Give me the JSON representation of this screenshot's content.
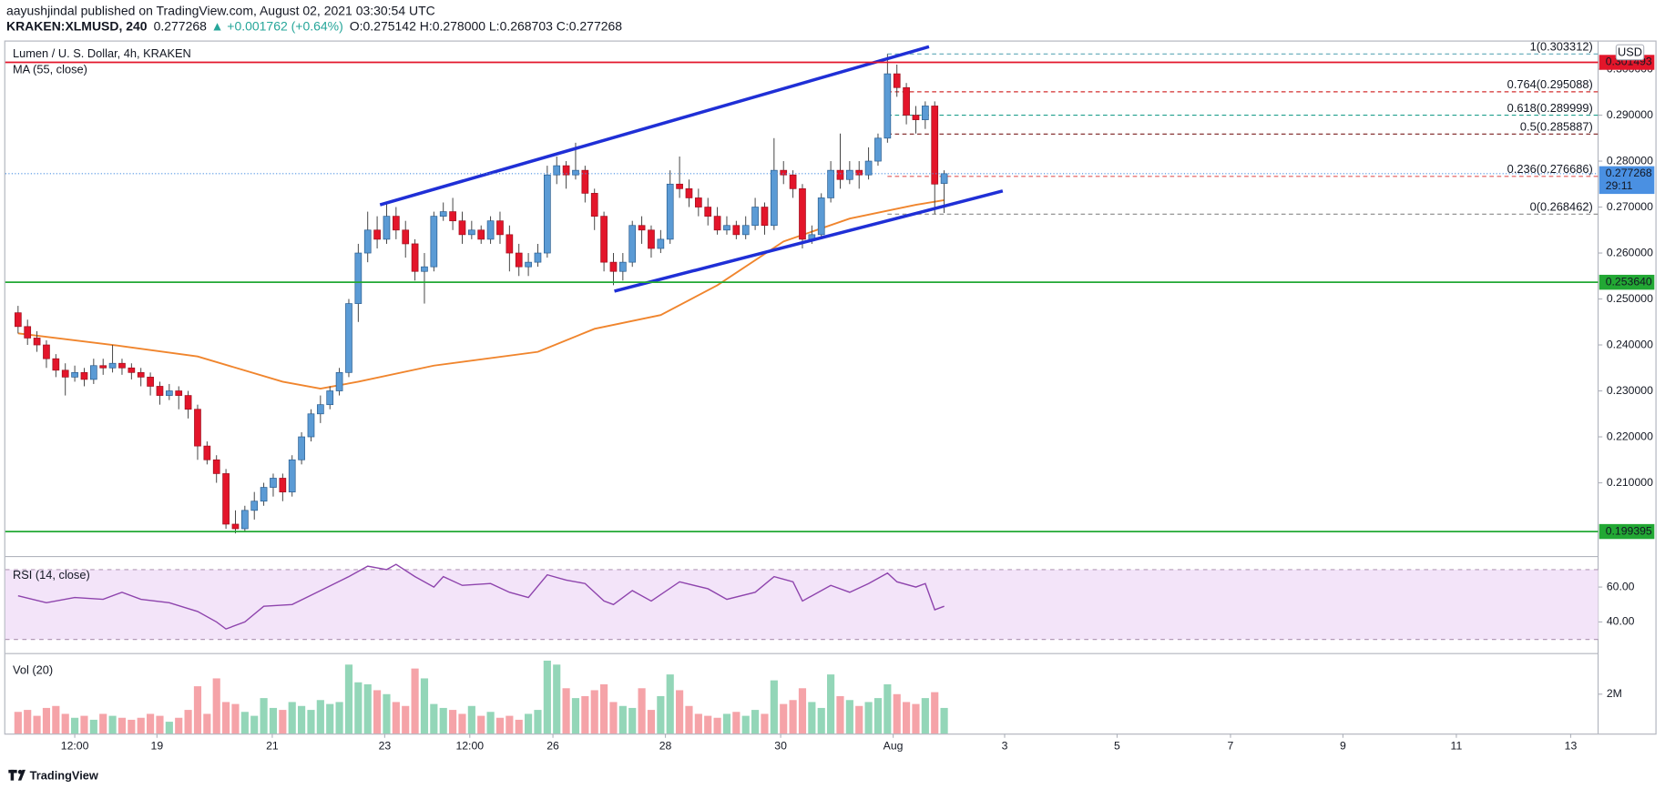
{
  "header": {
    "author_line": "aayushjindal published on TradingView.com, August 02, 2021 03:30:54 UTC",
    "symbol": "KRAKEN:XLMUSD, 240",
    "price": "0.277268",
    "change": "▲ +0.001762 (+0.64%)",
    "ohlc": "O:0.275142 H:0.278000 L:0.268703 C:0.277268"
  },
  "chart_data": [
    {
      "type": "candlestick",
      "title": "Lumen / U. S. Dollar, 4h, KRAKEN",
      "currency": "USD",
      "up_color": "#5b9bd5",
      "down_color": "#e3152a",
      "open": [
        0.247,
        0.244,
        0.2415,
        0.24,
        0.237,
        0.2345,
        0.233,
        0.234,
        0.2325,
        0.2355,
        0.235,
        0.236,
        0.235,
        0.234,
        0.233,
        0.231,
        0.229,
        0.23,
        0.229,
        0.226,
        0.218,
        0.215,
        0.212,
        0.201,
        0.2,
        0.204,
        0.206,
        0.209,
        0.211,
        0.208,
        0.215,
        0.22,
        0.225,
        0.227,
        0.23,
        0.234,
        0.249,
        0.26,
        0.265,
        0.263,
        0.268,
        0.265,
        0.262,
        0.256,
        0.257,
        0.268,
        0.269,
        0.267,
        0.264,
        0.265,
        0.263,
        0.267,
        0.264,
        0.26,
        0.257,
        0.258,
        0.26,
        0.277,
        0.279,
        0.277,
        0.278,
        0.273,
        0.268,
        0.258,
        0.256,
        0.258,
        0.266,
        0.265,
        0.261,
        0.263,
        0.275,
        0.274,
        0.272,
        0.27,
        0.268,
        0.265,
        0.266,
        0.264,
        0.266,
        0.27,
        0.266,
        0.278,
        0.277,
        0.274,
        0.263,
        0.264,
        0.272,
        0.278,
        0.276,
        0.278,
        0.277,
        0.28,
        0.285,
        0.299,
        0.296,
        0.29,
        0.289,
        0.292,
        0.275142
      ],
      "high": [
        0.2485,
        0.2455,
        0.243,
        0.241,
        0.238,
        0.236,
        0.2355,
        0.235,
        0.237,
        0.237,
        0.24,
        0.237,
        0.236,
        0.235,
        0.234,
        0.232,
        0.2315,
        0.231,
        0.23,
        0.227,
        0.219,
        0.216,
        0.213,
        0.204,
        0.205,
        0.208,
        0.21,
        0.212,
        0.212,
        0.216,
        0.221,
        0.226,
        0.229,
        0.231,
        0.235,
        0.25,
        0.262,
        0.269,
        0.268,
        0.271,
        0.27,
        0.267,
        0.263,
        0.26,
        0.269,
        0.271,
        0.272,
        0.269,
        0.267,
        0.266,
        0.268,
        0.269,
        0.266,
        0.262,
        0.26,
        0.262,
        0.279,
        0.281,
        0.28,
        0.284,
        0.279,
        0.274,
        0.269,
        0.26,
        0.26,
        0.267,
        0.268,
        0.266,
        0.265,
        0.278,
        0.281,
        0.276,
        0.274,
        0.272,
        0.27,
        0.268,
        0.267,
        0.268,
        0.272,
        0.271,
        0.285,
        0.28,
        0.278,
        0.275,
        0.266,
        0.273,
        0.28,
        0.286,
        0.28,
        0.28,
        0.283,
        0.286,
        0.303312,
        0.301,
        0.297,
        0.292,
        0.293,
        0.293,
        0.278
      ],
      "low": [
        0.2425,
        0.24,
        0.2385,
        0.235,
        0.233,
        0.229,
        0.232,
        0.231,
        0.2315,
        0.2335,
        0.234,
        0.2335,
        0.2325,
        0.231,
        0.229,
        0.227,
        0.228,
        0.226,
        0.224,
        0.215,
        0.214,
        0.21,
        0.2,
        0.199,
        0.1995,
        0.202,
        0.205,
        0.207,
        0.206,
        0.207,
        0.214,
        0.219,
        0.223,
        0.226,
        0.229,
        0.233,
        0.245,
        0.258,
        0.261,
        0.262,
        0.263,
        0.259,
        0.254,
        0.249,
        0.256,
        0.267,
        0.265,
        0.262,
        0.263,
        0.262,
        0.262,
        0.262,
        0.256,
        0.255,
        0.255,
        0.257,
        0.259,
        0.275,
        0.274,
        0.276,
        0.271,
        0.265,
        0.256,
        0.253,
        0.254,
        0.257,
        0.262,
        0.259,
        0.26,
        0.262,
        0.272,
        0.27,
        0.268,
        0.266,
        0.264,
        0.264,
        0.263,
        0.263,
        0.265,
        0.264,
        0.265,
        0.275,
        0.272,
        0.261,
        0.262,
        0.263,
        0.271,
        0.274,
        0.275,
        0.274,
        0.276,
        0.279,
        0.284,
        0.294,
        0.288,
        0.286,
        0.287,
        0.268462,
        0.268703
      ],
      "close": [
        0.244,
        0.2415,
        0.24,
        0.237,
        0.2345,
        0.233,
        0.234,
        0.2325,
        0.2355,
        0.235,
        0.236,
        0.235,
        0.234,
        0.233,
        0.231,
        0.229,
        0.23,
        0.229,
        0.226,
        0.218,
        0.215,
        0.212,
        0.201,
        0.2,
        0.204,
        0.206,
        0.209,
        0.211,
        0.208,
        0.215,
        0.22,
        0.225,
        0.227,
        0.23,
        0.234,
        0.249,
        0.26,
        0.265,
        0.263,
        0.268,
        0.265,
        0.262,
        0.256,
        0.257,
        0.268,
        0.269,
        0.267,
        0.264,
        0.265,
        0.263,
        0.267,
        0.264,
        0.26,
        0.257,
        0.258,
        0.26,
        0.277,
        0.279,
        0.277,
        0.278,
        0.273,
        0.268,
        0.258,
        0.256,
        0.258,
        0.266,
        0.265,
        0.261,
        0.263,
        0.275,
        0.274,
        0.272,
        0.27,
        0.268,
        0.265,
        0.266,
        0.264,
        0.266,
        0.27,
        0.266,
        0.278,
        0.277,
        0.274,
        0.263,
        0.264,
        0.272,
        0.278,
        0.276,
        0.278,
        0.277,
        0.28,
        0.285,
        0.299,
        0.296,
        0.29,
        0.289,
        0.292,
        0.275,
        0.277268
      ],
      "xlim": [
        -1.35,
        167.2
      ],
      "xticks": [
        {
          "value": 6,
          "label": "12:00"
        },
        {
          "value": 14.7,
          "label": "19"
        },
        {
          "value": 26.9,
          "label": "21"
        },
        {
          "value": 38.8,
          "label": "23"
        },
        {
          "value": 47.8,
          "label": "12:00"
        },
        {
          "value": 56.6,
          "label": "26"
        },
        {
          "value": 68.5,
          "label": "28"
        },
        {
          "value": 80.7,
          "label": "30"
        },
        {
          "value": 92.6,
          "label": "Aug"
        },
        {
          "value": 104.4,
          "label": "3"
        },
        {
          "value": 116.3,
          "label": "5"
        },
        {
          "value": 128.3,
          "label": "7"
        },
        {
          "value": 140.2,
          "label": "9"
        },
        {
          "value": 152.2,
          "label": "11"
        },
        {
          "value": 164.3,
          "label": "13"
        }
      ],
      "ylim": [
        0.19441,
        0.30578
      ],
      "yticks": [
        {
          "value": 0.21,
          "label": "0.210000"
        },
        {
          "value": 0.22,
          "label": "0.220000"
        },
        {
          "value": 0.23,
          "label": "0.230000"
        },
        {
          "value": 0.24,
          "label": "0.240000"
        },
        {
          "value": 0.25,
          "label": "0.250000"
        },
        {
          "value": 0.26,
          "label": "0.260000"
        },
        {
          "value": 0.27,
          "label": "0.270000"
        },
        {
          "value": 0.28,
          "label": "0.280000"
        },
        {
          "value": 0.29,
          "label": "0.290000"
        },
        {
          "value": 0.3,
          "label": "0.300000"
        }
      ],
      "ma": {
        "name": "MA (55, close)",
        "color": "#f0852d",
        "x": [
          0,
          10,
          19,
          28,
          32,
          36,
          44,
          55,
          61,
          68,
          74,
          81,
          88,
          95,
          98
        ],
        "values": [
          0.2425,
          0.24,
          0.2375,
          0.232,
          0.2305,
          0.232,
          0.2355,
          0.2385,
          0.2435,
          0.2465,
          0.253,
          0.2625,
          0.2675,
          0.2705,
          0.2715
        ]
      },
      "levels": [
        {
          "value": 0.301493,
          "color": "#e3152a"
        },
        {
          "value": 0.25364,
          "label": "0.253640",
          "color": "#22a834"
        },
        {
          "value": 0.199395,
          "color": "#22a834"
        }
      ],
      "fib_start": 92,
      "fib": [
        {
          "label": "1(0.303312)",
          "value": 0.303312,
          "color": "#5fa8b8"
        },
        {
          "label": "0.764(0.295088)",
          "value": 0.295088,
          "color": "#d32f2f"
        },
        {
          "label": "0.618(0.289999)",
          "value": 0.289999,
          "color": "#1e9e8c"
        },
        {
          "label": "0.5(0.285887)",
          "value": 0.285887,
          "color": "#7a1f1f"
        },
        {
          "label": "0.236(0.276686)",
          "value": 0.276686,
          "color": "#e05a5a"
        },
        {
          "label": "0(0.268462)",
          "value": 0.268462,
          "color": "#888888"
        }
      ],
      "trend_color": "#1f2fd6",
      "trendlines": [
        {
          "x": [
            38.3,
            96.4
          ],
          "values": [
            0.2705,
            0.3049
          ]
        },
        {
          "x": [
            63.1,
            104.2
          ],
          "values": [
            0.2517,
            0.2735
          ]
        }
      ],
      "last": {
        "value": 0.277268,
        "countdown": "29:11",
        "color": "#4a90e2"
      }
    },
    {
      "type": "line",
      "title": "RSI (14, close)",
      "color": "#8e44ad",
      "x": [
        0,
        3,
        6,
        9,
        11,
        13,
        16,
        19,
        21,
        22,
        24,
        26,
        29,
        32,
        35,
        37,
        39,
        40,
        42,
        44,
        45,
        47,
        50,
        52,
        54,
        56,
        58,
        60,
        62,
        63,
        65,
        67,
        70,
        73,
        75,
        78,
        80,
        82,
        83,
        86,
        88,
        90,
        92,
        93,
        95,
        96,
        97,
        98
      ],
      "values": [
        55,
        51,
        54,
        53,
        57,
        53,
        51,
        46,
        40,
        36,
        40,
        49,
        50,
        58,
        66,
        72,
        70,
        73,
        66,
        60,
        66,
        61,
        62,
        57,
        54,
        67,
        64,
        62,
        52,
        50,
        58,
        52,
        63,
        59,
        53,
        57,
        66,
        63,
        52,
        61,
        57,
        62,
        68,
        63,
        60,
        62,
        47,
        49
      ],
      "ylim": [
        23.1,
        76.25
      ],
      "yticks": [
        {
          "value": 60,
          "label": "60.00"
        },
        {
          "value": 40,
          "label": "40.00"
        }
      ],
      "band": [
        30,
        70
      ]
    },
    {
      "type": "bar",
      "title": "Vol (20)",
      "up_color": "#93d6b8",
      "down_color": "#f5a3a8",
      "values": [
        1.1,
        1.2,
        0.9,
        1.3,
        1.4,
        1.0,
        0.8,
        0.9,
        0.7,
        1.0,
        0.9,
        0.8,
        0.7,
        0.8,
        1.0,
        0.9,
        0.6,
        0.8,
        1.2,
        2.4,
        1.0,
        2.8,
        1.6,
        1.5,
        1.1,
        0.9,
        1.8,
        1.3,
        1.2,
        1.6,
        1.4,
        1.2,
        1.7,
        1.5,
        1.6,
        3.5,
        2.6,
        2.5,
        2.2,
        2.0,
        1.6,
        1.4,
        3.3,
        2.8,
        1.5,
        1.3,
        1.2,
        1.0,
        1.4,
        0.9,
        1.1,
        0.8,
        0.9,
        0.7,
        1.0,
        1.2,
        3.7,
        3.5,
        2.3,
        1.8,
        1.9,
        2.2,
        2.5,
        1.6,
        1.4,
        1.3,
        2.3,
        1.2,
        1.9,
        3.0,
        2.2,
        1.4,
        1.0,
        0.9,
        0.8,
        1.0,
        1.1,
        0.9,
        1.2,
        1.0,
        2.7,
        1.5,
        1.7,
        2.3,
        1.6,
        1.3,
        3.0,
        1.9,
        1.7,
        1.4,
        1.6,
        1.8,
        2.5,
        2.0,
        1.6,
        1.5,
        1.8,
        2.1,
        1.3
      ],
      "ylim": [
        0,
        3.95
      ],
      "yticks": [
        {
          "value": 2,
          "label": "2M"
        }
      ]
    }
  ],
  "footer": {
    "brand": "TradingView"
  }
}
